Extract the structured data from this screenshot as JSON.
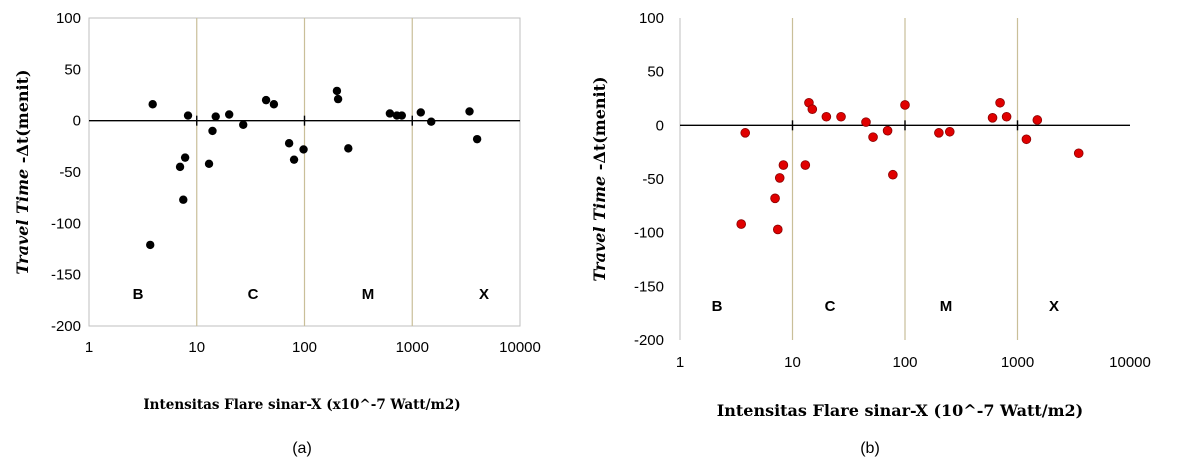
{
  "chart_data": [
    {
      "type": "scatter",
      "panel_label": "(a)",
      "xscale": "log",
      "xlim": [
        1,
        10000
      ],
      "ylim": [
        -200,
        100
      ],
      "x_ticks": [
        "1",
        "10",
        "100",
        "1000",
        "10000"
      ],
      "y_ticks": [
        "100",
        "50",
        "0",
        "-50",
        "-100",
        "-150",
        "-200"
      ],
      "ylabel_italic": "Travel Time",
      "ylabel_rest": "-Δt(menit)",
      "xlabel": "Intensitas  Flare sinar-X (x10^-7 Watt/m2)",
      "class_labels": [
        "B",
        "C",
        "M",
        "X"
      ],
      "marker_color": "#000000",
      "grid": "vertical lines at decades",
      "points": [
        {
          "x": 3.7,
          "y": -121
        },
        {
          "x": 3.9,
          "y": 16
        },
        {
          "x": 7.0,
          "y": -45
        },
        {
          "x": 7.5,
          "y": -77
        },
        {
          "x": 7.8,
          "y": -36
        },
        {
          "x": 8.3,
          "y": 5
        },
        {
          "x": 13,
          "y": -42
        },
        {
          "x": 14,
          "y": -10
        },
        {
          "x": 15,
          "y": 4
        },
        {
          "x": 20,
          "y": 6
        },
        {
          "x": 27,
          "y": -4
        },
        {
          "x": 44,
          "y": 20
        },
        {
          "x": 52,
          "y": 16
        },
        {
          "x": 72,
          "y": -22
        },
        {
          "x": 80,
          "y": -38
        },
        {
          "x": 98,
          "y": -28
        },
        {
          "x": 200,
          "y": 29
        },
        {
          "x": 205,
          "y": 21
        },
        {
          "x": 255,
          "y": -27
        },
        {
          "x": 620,
          "y": 7
        },
        {
          "x": 720,
          "y": 5
        },
        {
          "x": 800,
          "y": 5
        },
        {
          "x": 1200,
          "y": 8
        },
        {
          "x": 1500,
          "y": -1
        },
        {
          "x": 3400,
          "y": 9
        },
        {
          "x": 4000,
          "y": -18
        }
      ]
    },
    {
      "type": "scatter",
      "panel_label": "(b)",
      "xscale": "log",
      "xlim": [
        1,
        10000
      ],
      "ylim": [
        -200,
        100
      ],
      "x_ticks": [
        "1",
        "10",
        "100",
        "1000",
        "10000"
      ],
      "y_ticks": [
        "100",
        "50",
        "0",
        "-50",
        "-100",
        "-150",
        "-200"
      ],
      "ylabel_italic": "Travel Time",
      "ylabel_rest": "-Δt(menit)",
      "xlabel": "Intensitas  Flare sinar-X (10^-7 Watt/m2)",
      "class_labels": [
        "B",
        "C",
        "M",
        "X"
      ],
      "marker_color": "#e00000",
      "grid": "vertical lines at decades",
      "points": [
        {
          "x": 3.5,
          "y": -92
        },
        {
          "x": 3.8,
          "y": -7
        },
        {
          "x": 7.0,
          "y": -68
        },
        {
          "x": 7.4,
          "y": -97
        },
        {
          "x": 7.7,
          "y": -49
        },
        {
          "x": 8.3,
          "y": -37
        },
        {
          "x": 13,
          "y": -37
        },
        {
          "x": 14,
          "y": 21
        },
        {
          "x": 15,
          "y": 15
        },
        {
          "x": 20,
          "y": 8
        },
        {
          "x": 27,
          "y": 8
        },
        {
          "x": 45,
          "y": 3
        },
        {
          "x": 52,
          "y": -11
        },
        {
          "x": 70,
          "y": -5
        },
        {
          "x": 78,
          "y": -46
        },
        {
          "x": 100,
          "y": 19
        },
        {
          "x": 200,
          "y": -7
        },
        {
          "x": 250,
          "y": -6
        },
        {
          "x": 600,
          "y": 7
        },
        {
          "x": 700,
          "y": 21
        },
        {
          "x": 800,
          "y": 8
        },
        {
          "x": 1200,
          "y": -13
        },
        {
          "x": 1500,
          "y": 5
        },
        {
          "x": 3500,
          "y": -26
        }
      ]
    }
  ]
}
